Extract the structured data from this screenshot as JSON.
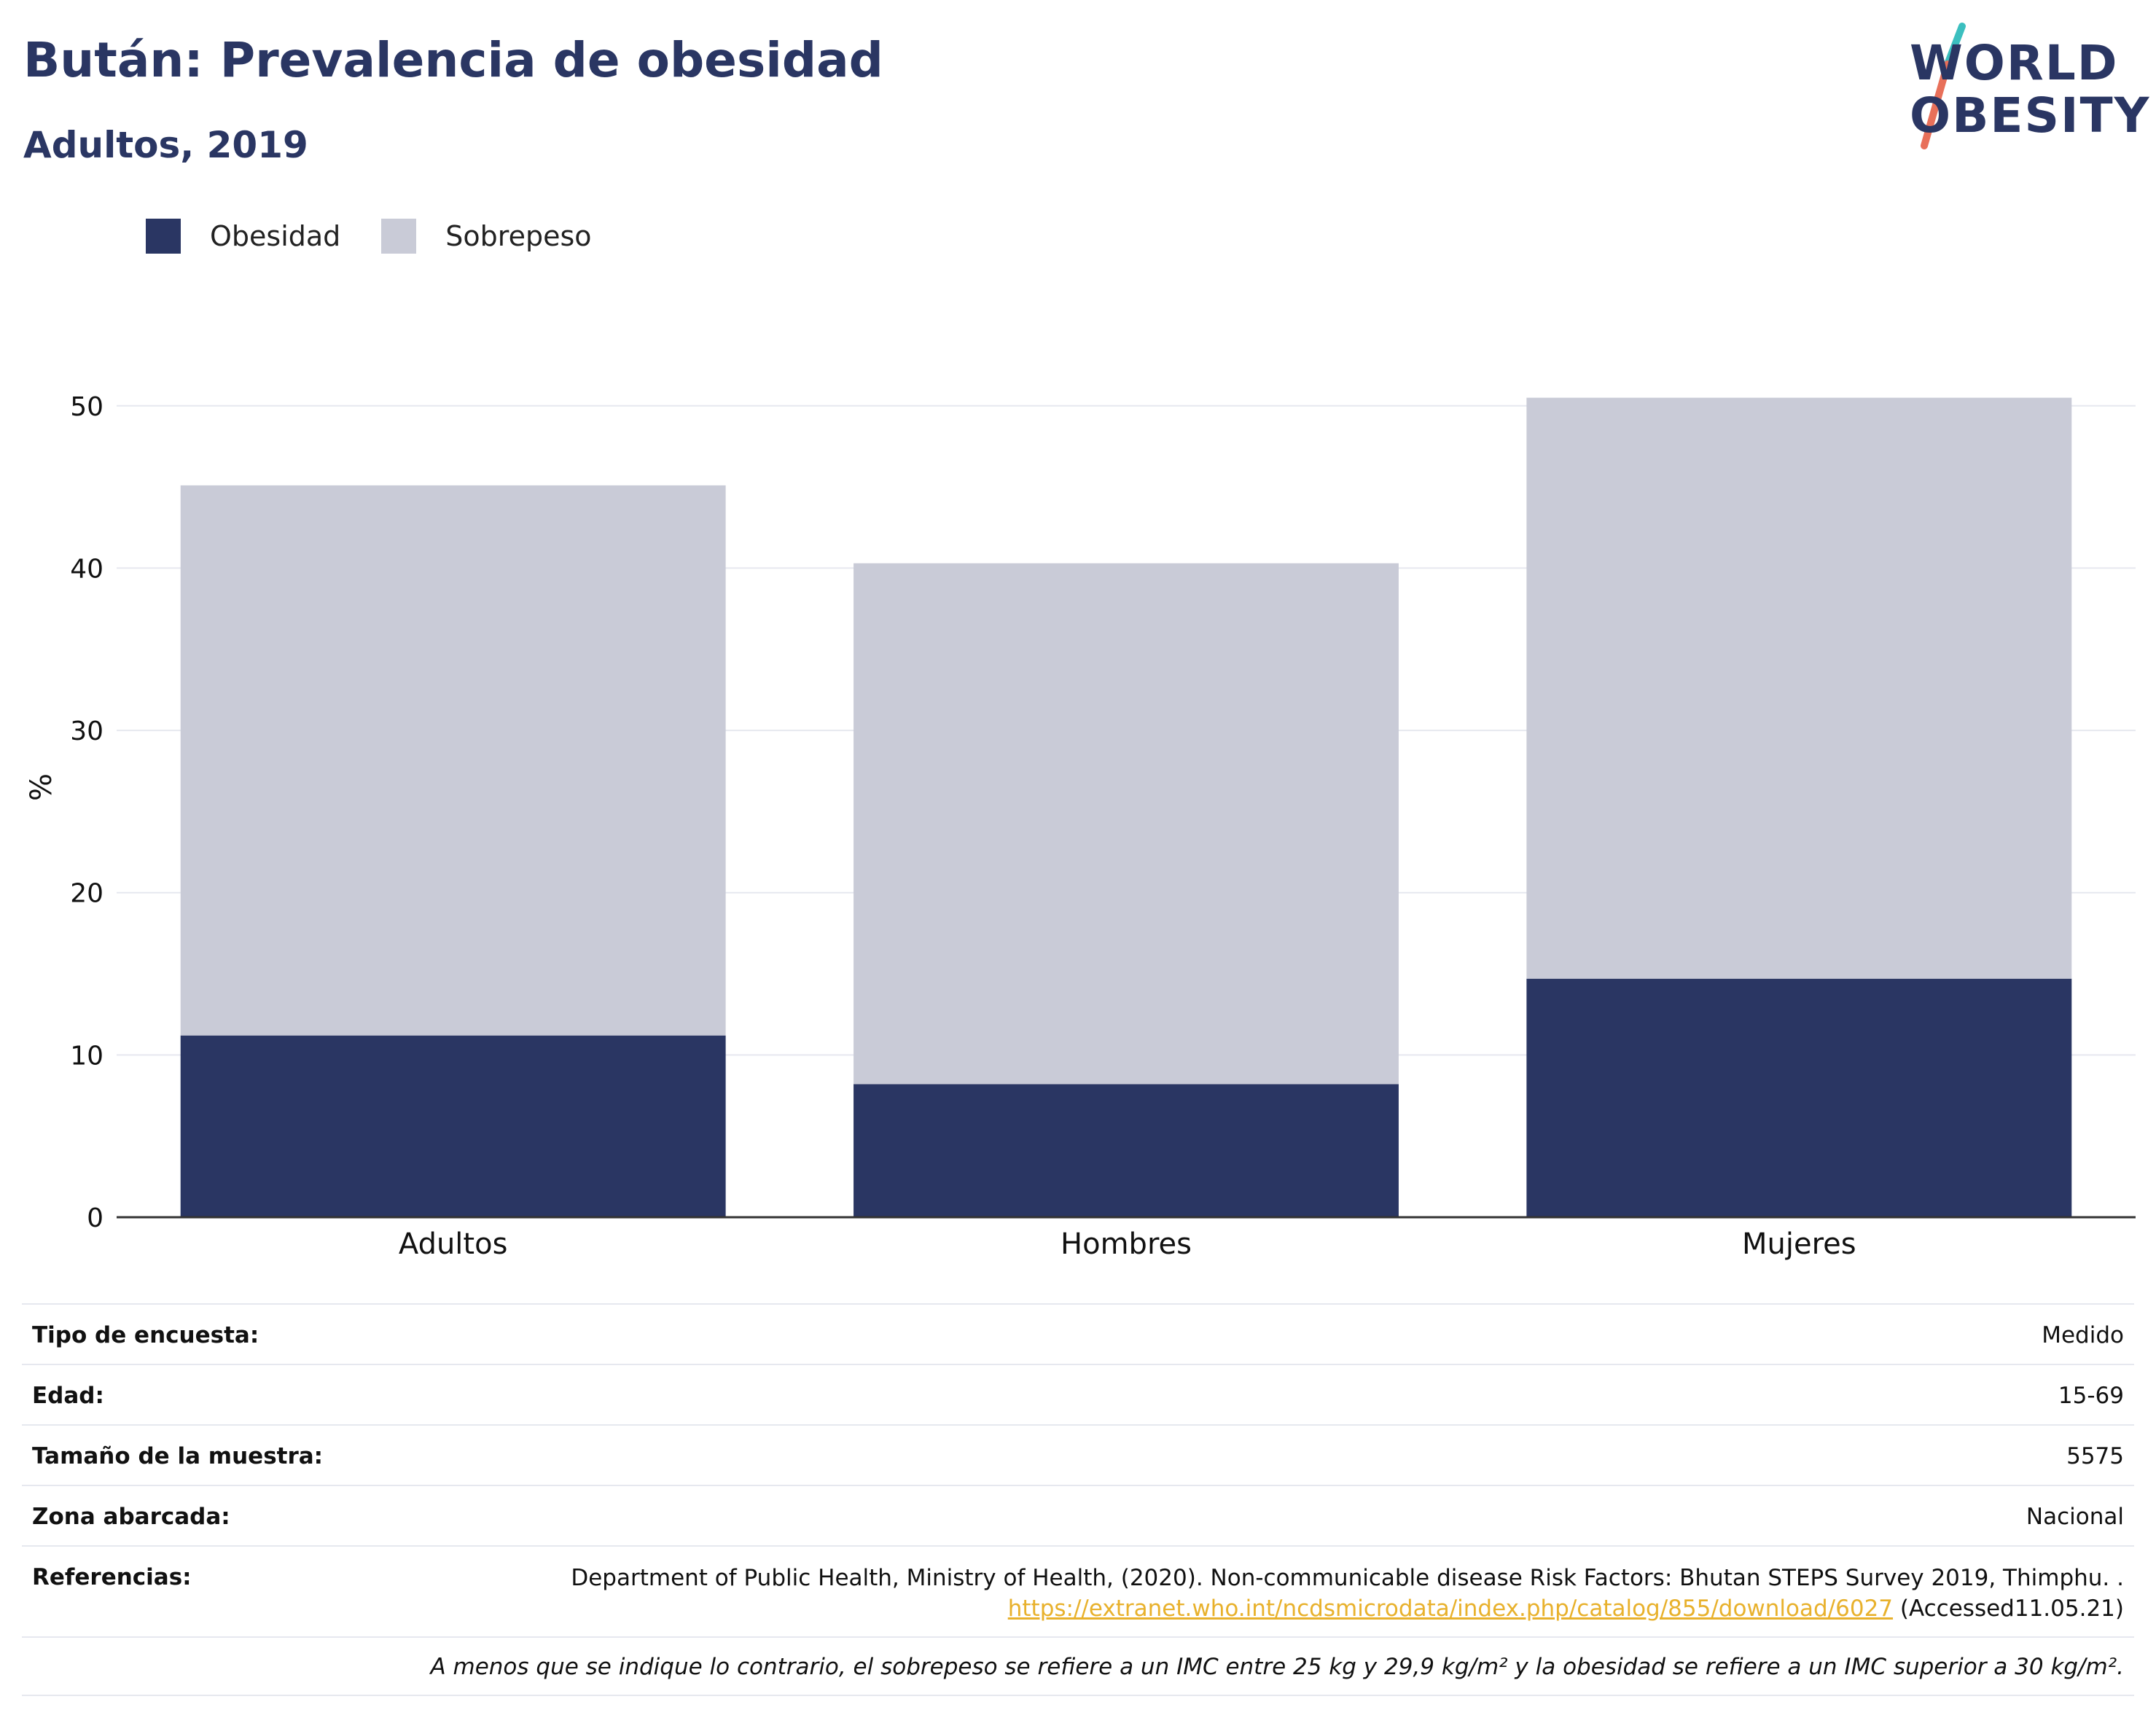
{
  "title": "Bután: Prevalencia de obesidad",
  "subtitle": "Adultos, 2019",
  "logo": {
    "line1": "WORLD",
    "line2": "OBESITY",
    "colors": {
      "navy": "#2a3663",
      "teal": "#3bbfbf",
      "coral": "#e8705a"
    }
  },
  "legend": [
    {
      "label": "Obesidad",
      "color": "#2a3663"
    },
    {
      "label": "Sobrepeso",
      "color": "#c9cbd7"
    }
  ],
  "chart_data": {
    "type": "bar",
    "stacked": true,
    "categories": [
      "Adultos",
      "Hombres",
      "Mujeres"
    ],
    "series": [
      {
        "name": "Obesidad",
        "color": "#2a3663",
        "values": [
          11.2,
          8.2,
          14.7
        ]
      },
      {
        "name": "Sobrepeso",
        "color": "#c9cbd7",
        "values": [
          33.9,
          32.1,
          35.8
        ]
      }
    ],
    "ylabel": "%",
    "ylim": [
      0,
      53
    ],
    "yticks": [
      0,
      10,
      20,
      30,
      40,
      50
    ],
    "grid": true,
    "legend_position": "top-left"
  },
  "info": {
    "survey_type": {
      "label": "Tipo de encuesta:",
      "value": "Medido"
    },
    "age": {
      "label": "Edad:",
      "value": "15-69"
    },
    "sample": {
      "label": "Tamaño de la muestra:",
      "value": "5575"
    },
    "area": {
      "label": "Zona abarcada:",
      "value": "Nacional"
    },
    "references": {
      "label": "Referencias:",
      "text_before": "Department of Public Health, Ministry of Health, (2020). Non-communicable disease Risk Factors: Bhutan STEPS Survey 2019, Thimphu. . ",
      "link": "https://extranet.who.int/ncdsmicrodata/index.php/catalog/855/download/6027",
      "text_after": " (Accessed11.05.21)"
    },
    "note": "A menos que se indique lo contrario, el sobrepeso se refiere a un IMC entre 25 kg y 29,9 kg/m² y la obesidad se refiere a un IMC superior a 30 kg/m²."
  }
}
